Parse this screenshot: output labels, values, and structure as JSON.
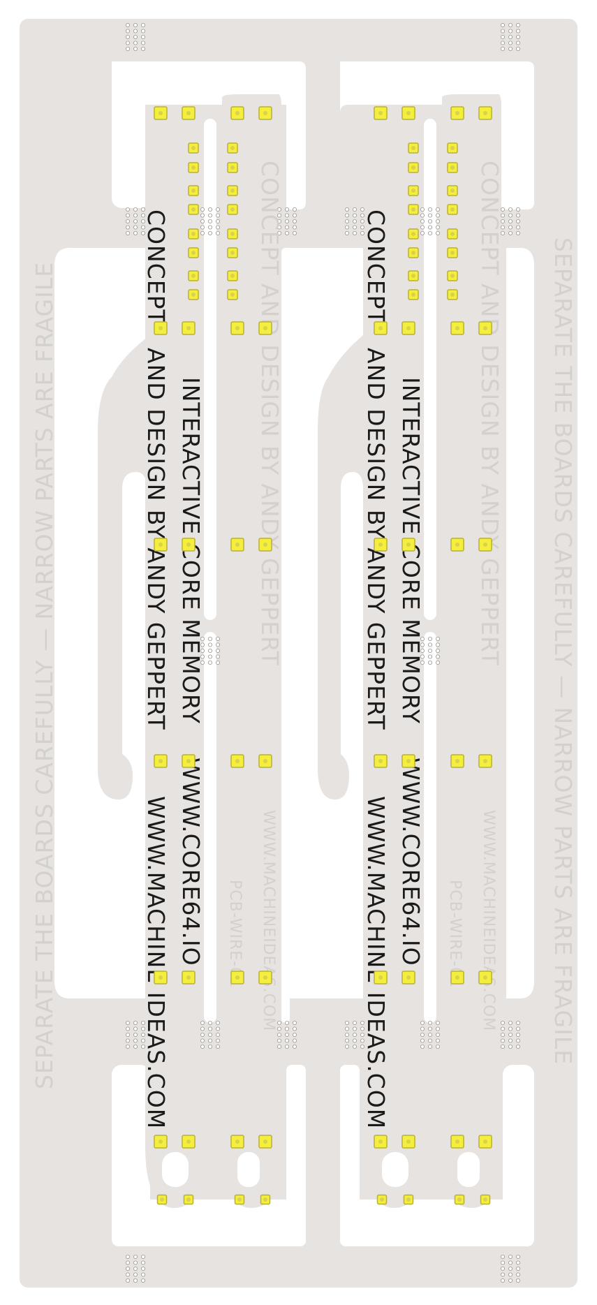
{
  "board": {
    "substrate_color": "#e6e3e0",
    "cutout_color": "#ffffff",
    "pad_fill": "#f4ee3c",
    "pad_stroke": "#b8b036",
    "silkscreen_color": "#1a1a1a"
  },
  "text": {
    "line_title": "INTERACTIVE CORE MEMORY",
    "line_url_core": "WWW.CORE64.IO",
    "line_credit_1": "CONCEPT",
    "line_credit_2": "AND DESIGN BY ANDY GEPPERT",
    "line_url_machine": "WWW.MACHINE IDEAS.COM",
    "back_credit": "CONCEPT AND DESIGN BY ANDY GEPPERT",
    "back_note": "SEPARATE THE BOARDS CAREFULLY — NARROW PARTS ARE FRAGILE",
    "back_url": "WWW.MACHINEIDEAS.COM",
    "back_part": "PCB-WIRE-01"
  }
}
